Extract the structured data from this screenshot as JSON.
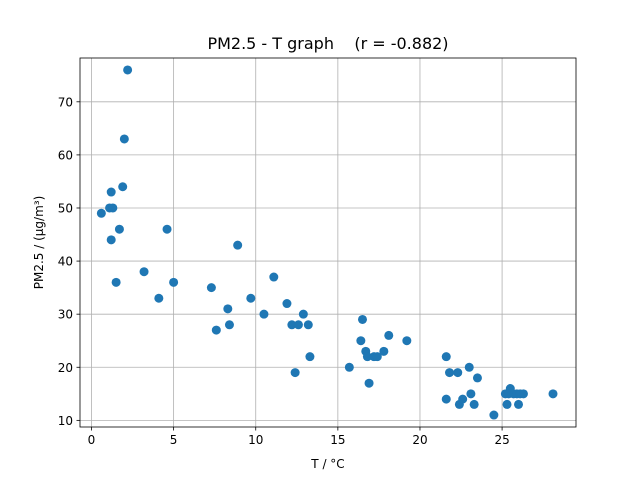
{
  "chart_data": {
    "type": "scatter",
    "title": "PM2.5 - T graph    (r = -0.882)",
    "xlabel": "T / °C",
    "ylabel": "PM2.5 / (μg/m³)",
    "xlim": [
      -0.7,
      29.5
    ],
    "ylim": [
      8.75,
      78.25
    ],
    "xticks": [
      0,
      5,
      10,
      15,
      20,
      25
    ],
    "yticks": [
      10,
      20,
      30,
      40,
      50,
      60,
      70
    ],
    "xtick_labels": [
      "0",
      "5",
      "10",
      "15",
      "20",
      "25"
    ],
    "ytick_labels": [
      "10",
      "20",
      "30",
      "40",
      "50",
      "60",
      "70"
    ],
    "grid": true,
    "marker_color": "#1f77b4",
    "series": [
      {
        "x": [
          2.2,
          2.0,
          1.9,
          1.2,
          0.6,
          1.1,
          1.3,
          1.7,
          1.2,
          1.5,
          3.2,
          4.1,
          4.6,
          5.0,
          7.3,
          7.6,
          8.3,
          8.4,
          8.9,
          9.7,
          10.5,
          11.1,
          11.9,
          12.2,
          12.4,
          12.6,
          12.9,
          13.3,
          13.2,
          15.7,
          16.4,
          16.5,
          16.7,
          16.9,
          16.8,
          17.2,
          17.4,
          17.8,
          18.1,
          19.2,
          21.6,
          21.6,
          21.8,
          22.3,
          22.4,
          22.6,
          23.0,
          23.1,
          23.3,
          23.5,
          24.5,
          25.2,
          25.3,
          25.4,
          25.5,
          25.7,
          25.9,
          26.0,
          26.1,
          26.3,
          28.1
        ],
        "y": [
          76,
          63,
          54,
          53,
          49,
          50,
          50,
          46,
          44,
          36,
          38,
          33,
          46,
          36,
          35,
          27,
          31,
          28,
          43,
          33,
          30,
          37,
          32,
          28,
          19,
          28,
          30,
          22,
          28,
          20,
          25,
          29,
          23,
          17,
          22,
          22,
          22,
          23,
          26,
          25,
          22,
          14,
          19,
          19,
          13,
          14,
          20,
          15,
          13,
          18,
          11,
          15,
          13,
          15,
          16,
          15,
          15,
          13,
          15,
          15,
          15
        ]
      }
    ]
  }
}
